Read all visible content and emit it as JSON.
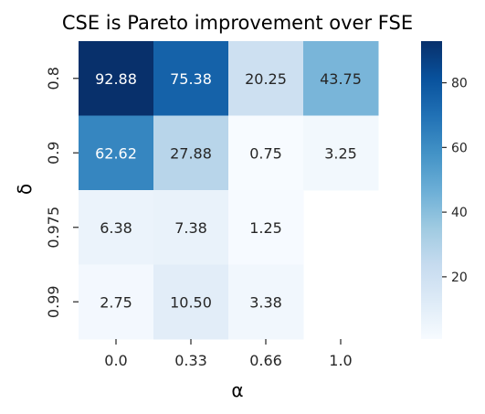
{
  "chart_data": {
    "type": "heatmap",
    "title": "CSE is Pareto improvement over FSE",
    "xlabel": "α",
    "ylabel": "δ",
    "x_categories": [
      "0.0",
      "0.33",
      "0.66",
      "1.0"
    ],
    "y_categories": [
      "0.8",
      "0.9",
      "0.975",
      "0.99"
    ],
    "values": [
      [
        92.88,
        75.38,
        20.25,
        43.75
      ],
      [
        62.62,
        27.88,
        0.75,
        3.25
      ],
      [
        6.38,
        7.38,
        1.25,
        null
      ],
      [
        2.75,
        10.5,
        3.38,
        null
      ]
    ],
    "cell_labels": [
      [
        "92.88",
        "75.38",
        "20.25",
        "43.75"
      ],
      [
        "62.62",
        "27.88",
        "0.75",
        "3.25"
      ],
      [
        "6.38",
        "7.38",
        "1.25",
        ""
      ],
      [
        "2.75",
        "10.50",
        "3.38",
        ""
      ]
    ],
    "colormap": "Blues",
    "vmin": 0.75,
    "vmax": 92.88,
    "colorbar_ticks": [
      20,
      40,
      60,
      80
    ]
  }
}
